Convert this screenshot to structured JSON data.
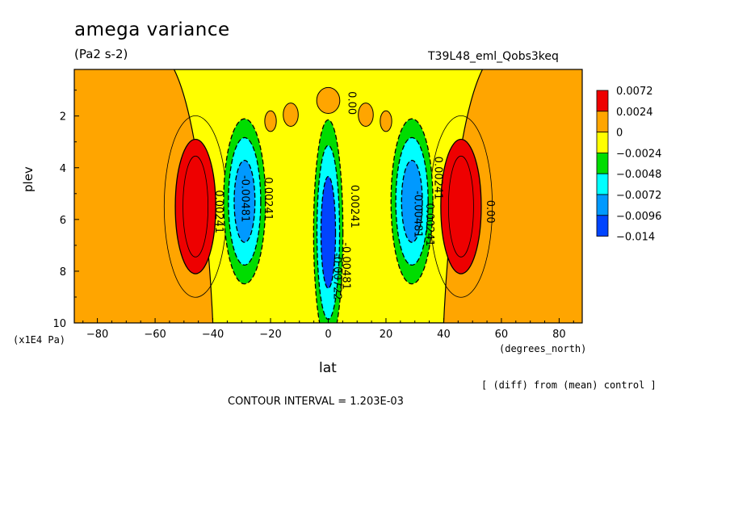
{
  "title": "amega variance",
  "units": "(Pa2 s-2)",
  "run_label": "T39L48_eml_Qobs3keq",
  "note": "[ (diff) from (mean) control ]",
  "contour_interval": "CONTOUR INTERVAL = 1.203E-03",
  "chart_data": {
    "type": "heatmap",
    "xlabel": "lat",
    "x_units": "(degrees_north)",
    "ylabel": "plev",
    "y_units": "(x1E4 Pa)",
    "xlim": [
      -88,
      88
    ],
    "ylim": [
      10,
      0.2
    ],
    "x_ticks": [
      -80,
      -60,
      -40,
      -20,
      0,
      20,
      40,
      60,
      80
    ],
    "x_tick_labels": [
      "−80",
      "−60",
      "−40",
      "−20",
      "0",
      "20",
      "40",
      "60",
      "80"
    ],
    "y_ticks": [
      2,
      4,
      6,
      8,
      10
    ],
    "y_tick_labels": [
      "2",
      "4",
      "6",
      "8",
      "10"
    ],
    "legend": {
      "placement": "right",
      "levels": [
        {
          "label": "0.0072",
          "color": "#ee0000"
        },
        {
          "label": "0.0024",
          "color": "#ffa500"
        },
        {
          "label": "0",
          "color": "#ffff00"
        },
        {
          "label": "−0.0024",
          "color": "#00dd00"
        },
        {
          "label": "−0.0048",
          "color": "#00ffff"
        },
        {
          "label": "−0.0072",
          "color": "#0099ff"
        },
        {
          "label": "−0.0096",
          "color": "#0044ff"
        },
        {
          "label": "−0.014",
          "color": "#0044ff"
        }
      ]
    },
    "background_color": "#ffa500",
    "regions": [
      {
        "name": "equatorial-neutral-band",
        "color": "#ffff00",
        "lat": [
          -40,
          40
        ],
        "plev": [
          0.2,
          10
        ]
      },
      {
        "name": "south-positive-max",
        "color": "#ee0000",
        "center": [
          -46,
          5.5
        ],
        "half_width": [
          7,
          2.6
        ],
        "value": 0.0072
      },
      {
        "name": "north-positive-max",
        "color": "#ee0000",
        "center": [
          46,
          5.5
        ],
        "half_width": [
          7,
          2.6
        ],
        "value": 0.0072
      },
      {
        "name": "south-negative-min",
        "color": "#0099ff",
        "center": [
          -29,
          5.3
        ],
        "half_width": [
          5,
          2.2
        ],
        "value": -0.0072
      },
      {
        "name": "equator-negative-min",
        "color": "#0044ff",
        "center": [
          0,
          6.5
        ],
        "half_width": [
          3.5,
          3.0
        ],
        "value": -0.0096
      },
      {
        "name": "north-negative-min",
        "color": "#0099ff",
        "center": [
          29,
          5.3
        ],
        "half_width": [
          5,
          2.2
        ],
        "value": -0.0072
      }
    ],
    "contour_labels": [
      "0.00241",
      "-0.00481",
      "0.00241",
      "0.00241",
      "-0.00722",
      "-0.00481",
      "-0.00481",
      "0.00241",
      "0.00241",
      "0.00",
      "0.00"
    ]
  }
}
